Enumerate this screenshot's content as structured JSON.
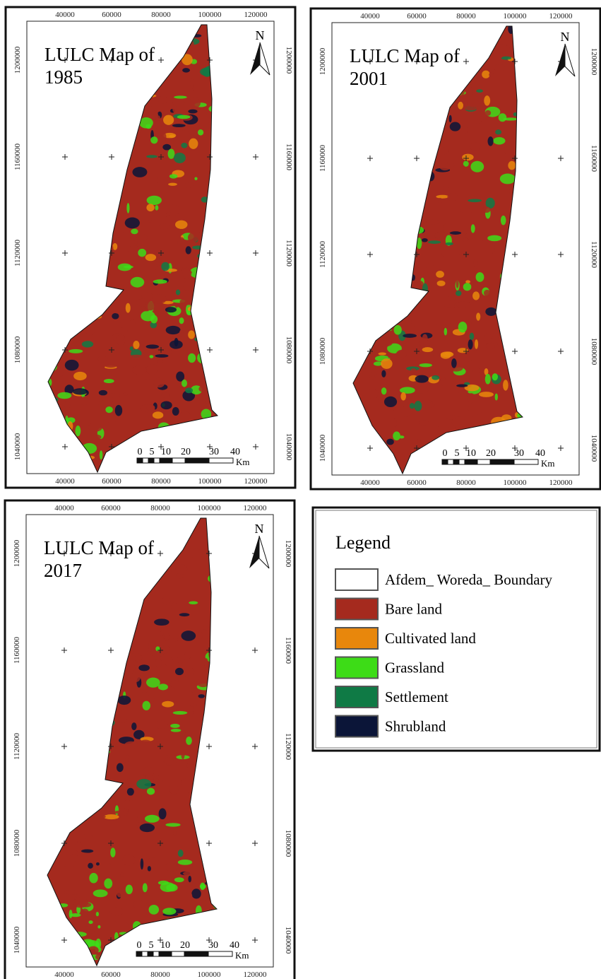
{
  "maps": [
    {
      "title_lines": [
        "LULC Map of",
        "1985"
      ],
      "x_labels": [
        "40000",
        "60000",
        "80000",
        "100000",
        "120000"
      ],
      "y_labels": [
        "1200000",
        "1160000",
        "1120000",
        "1080000",
        "1040000"
      ],
      "north": "N",
      "scale_labels": [
        "0",
        "5",
        "10",
        "20",
        "30",
        "40"
      ],
      "scale_unit": "Km"
    },
    {
      "title_lines": [
        "LULC Map of",
        "2001"
      ],
      "x_labels": [
        "40000",
        "60000",
        "80000",
        "100000",
        "120000"
      ],
      "y_labels": [
        "1200000",
        "1160000",
        "1120000",
        "1080000",
        "1040000"
      ],
      "north": "N",
      "scale_labels": [
        "0",
        "5",
        "10",
        "20",
        "30",
        "40"
      ],
      "scale_unit": "Km"
    },
    {
      "title_lines": [
        "LULC Map of",
        "2017"
      ],
      "x_labels": [
        "40000",
        "60000",
        "80000",
        "100000",
        "120000"
      ],
      "y_labels": [
        "1200000",
        "1160000",
        "1120000",
        "1080000",
        "1040000"
      ],
      "north": "N",
      "scale_labels": [
        "0",
        "5",
        "10",
        "20",
        "30",
        "40"
      ],
      "scale_unit": "Km"
    }
  ],
  "legend": {
    "title": "Legend",
    "items": [
      {
        "label": "Afdem_ Woreda_ Boundary",
        "color": "#ffffff"
      },
      {
        "label": "Bare land",
        "color": "#a52a1e"
      },
      {
        "label": "Cultivated land",
        "color": "#e8870c"
      },
      {
        "label": "Grassland",
        "color": "#3ddc17"
      },
      {
        "label": "Settlement",
        "color": "#0f7a45"
      },
      {
        "label": "Shrubland",
        "color": "#0b1538"
      }
    ]
  }
}
